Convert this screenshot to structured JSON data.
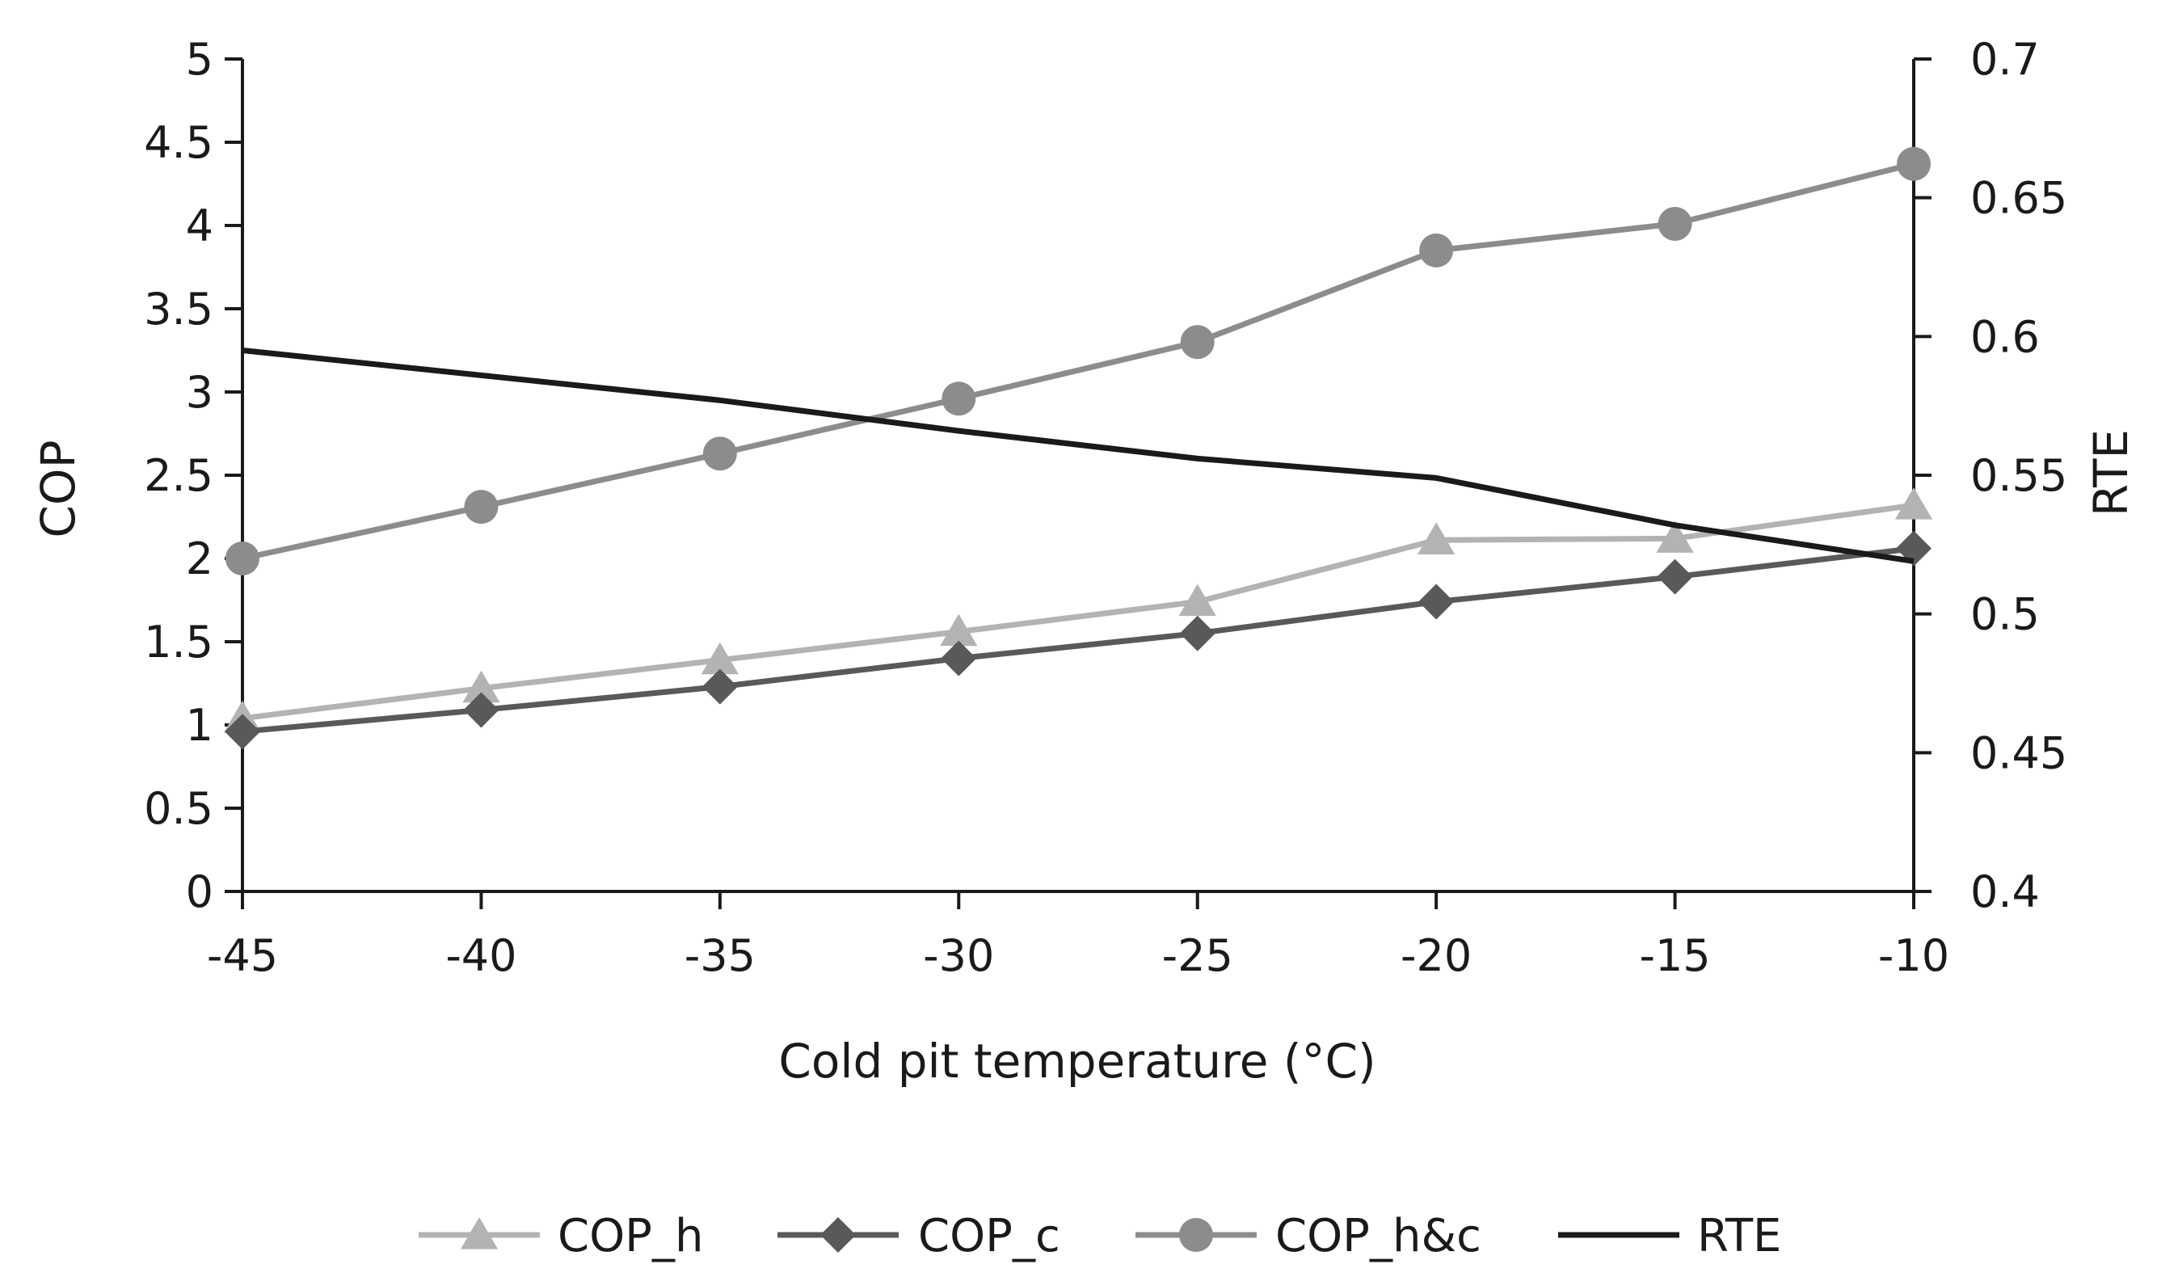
{
  "chart_data": {
    "type": "line",
    "title": "",
    "xlabel": "Cold pit temperature (°C)",
    "ylabel": "COP",
    "y2label": "RTE",
    "x": [
      -45,
      -40,
      -35,
      -30,
      -25,
      -20,
      -15,
      -10
    ],
    "x_ticks": [
      "-45",
      "-40",
      "-35",
      "-30",
      "-25",
      "-20",
      "-15",
      "-10"
    ],
    "xlim": [
      -45,
      -10
    ],
    "ylim": [
      0,
      5
    ],
    "y_ticks": [
      "0",
      "0.5",
      "1",
      "1.5",
      "2",
      "2.5",
      "3",
      "3.5",
      "4",
      "4.5",
      "5"
    ],
    "y2lim": [
      0.4,
      0.7
    ],
    "y2_ticks": [
      "0.4",
      "0.45",
      "0.5",
      "0.55",
      "0.6",
      "0.65",
      "0.7"
    ],
    "legend_position": "bottom",
    "grid": false,
    "series": [
      {
        "name": "COP_h",
        "axis": "left",
        "marker": "triangle",
        "color": "#b3b3b3",
        "values": [
          1.04,
          1.22,
          1.39,
          1.56,
          1.74,
          2.11,
          2.12,
          2.32
        ]
      },
      {
        "name": "COP_c",
        "axis": "left",
        "marker": "diamond",
        "color": "#595959",
        "values": [
          0.96,
          1.09,
          1.23,
          1.4,
          1.55,
          1.74,
          1.89,
          2.06
        ]
      },
      {
        "name": "COP_h&c",
        "axis": "left",
        "marker": "circle",
        "color": "#8c8c8c",
        "values": [
          2.0,
          2.31,
          2.63,
          2.96,
          3.3,
          3.85,
          4.01,
          4.37
        ]
      },
      {
        "name": "RTE",
        "axis": "right",
        "marker": "none",
        "color": "#1a1a1a",
        "values": [
          0.595,
          0.586,
          0.577,
          0.566,
          0.556,
          0.549,
          0.532,
          0.519
        ]
      }
    ]
  }
}
